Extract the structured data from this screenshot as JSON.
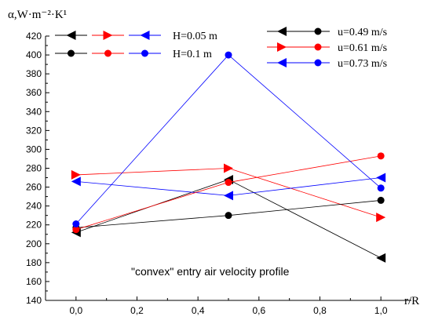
{
  "chart_data": {
    "type": "line",
    "ylabel": "α,W·m⁻²·K¹",
    "xlabel": "r/R",
    "annotation": "\"convex\" entry air velocity profile",
    "xlim": [
      -0.1,
      1.1
    ],
    "ylim": [
      140,
      420
    ],
    "xticks": [
      0.0,
      0.2,
      0.4,
      0.6,
      0.8,
      1.0
    ],
    "xtick_labels": [
      "0,0",
      "0,2",
      "0,4",
      "0,6",
      "0,8",
      "1,0"
    ],
    "yticks": [
      140,
      160,
      180,
      200,
      220,
      240,
      260,
      280,
      300,
      320,
      340,
      360,
      380,
      400,
      420
    ],
    "x": [
      0.0,
      0.5,
      1.0
    ],
    "series": [
      {
        "name": "H=0.05 m, u=0.49 m/s",
        "height_key": "H=0.05 m",
        "velocity_key": "u=0.49 m/s",
        "marker": "triangle-left",
        "color": "#000000",
        "values": [
          212,
          268,
          185
        ]
      },
      {
        "name": "H=0.05 m, u=0.61 m/s",
        "height_key": "H=0.05 m",
        "velocity_key": "u=0.61 m/s",
        "marker": "triangle-right",
        "color": "#ff0000",
        "values": [
          273,
          280,
          228
        ]
      },
      {
        "name": "H=0.05 m, u=0.73 m/s",
        "height_key": "H=0.05 m",
        "velocity_key": "u=0.73 m/s",
        "marker": "triangle-left",
        "color": "#0000ff",
        "values": [
          266,
          251,
          270
        ]
      },
      {
        "name": "H=0.1 m, u=0.49 m/s",
        "height_key": "H=0.1 m",
        "velocity_key": "u=0.49 m/s",
        "marker": "circle",
        "color": "#000000",
        "values": [
          217,
          230,
          246
        ]
      },
      {
        "name": "H=0.1 m, u=0.61 m/s",
        "height_key": "H=0.1 m",
        "velocity_key": "u=0.61 m/s",
        "marker": "circle",
        "color": "#ff0000",
        "values": [
          215,
          265,
          293
        ]
      },
      {
        "name": "H=0.1 m, u=0.73 m/s",
        "height_key": "H=0.1 m",
        "velocity_key": "u=0.73 m/s",
        "marker": "circle",
        "color": "#0000ff",
        "values": [
          221,
          400,
          259
        ]
      }
    ],
    "legend_height": [
      {
        "label": "H=0.05 m",
        "marker": "triangle",
        "colors": [
          "#000000",
          "#ff0000",
          "#0000ff"
        ],
        "directions": [
          "left",
          "right",
          "left"
        ]
      },
      {
        "label": "H=0.1 m",
        "marker": "circle",
        "colors": [
          "#000000",
          "#ff0000",
          "#0000ff"
        ]
      }
    ],
    "legend_velocity": [
      {
        "label": "u=0.49 m/s",
        "color": "#000000",
        "triangle_direction": "left"
      },
      {
        "label": "u=0.61 m/s",
        "color": "#ff0000",
        "triangle_direction": "right"
      },
      {
        "label": "u=0.73 m/s",
        "color": "#0000ff",
        "triangle_direction": "left"
      }
    ]
  }
}
